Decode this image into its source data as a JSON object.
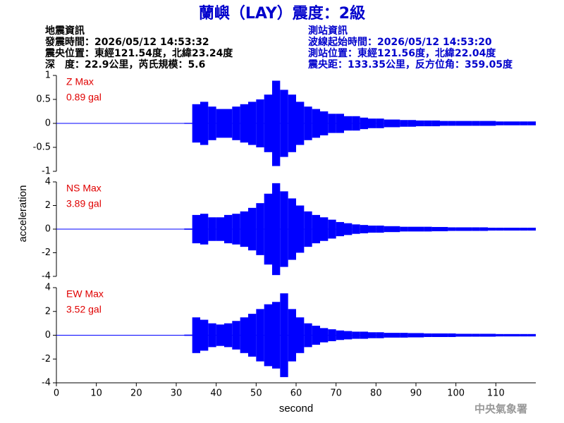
{
  "header": {
    "title": "蘭嶼（LAY）震度：2級",
    "left": [
      "地震資訊",
      "發震時間：2026/05/12 14:53:32",
      "震央位置：東經121.54度，北緯23.24度",
      "深　度：22.9公里，芮氏規模：5.6"
    ],
    "right": [
      "測站資訊",
      "波線起始時間：2026/05/12 14:53:20",
      "測站位置：東經121.56度，北緯22.04度",
      "震央距：133.35公里，反方位角：359.05度"
    ]
  },
  "ylabel": "acceleration",
  "footer": "中央氣象署",
  "chart_data": [
    {
      "type": "line",
      "label": "Z Max",
      "max_label": "0.89 gal",
      "color": "#0000ff",
      "x": [
        0,
        2,
        4,
        6,
        8,
        10,
        12,
        14,
        16,
        18,
        20,
        22,
        24,
        26,
        28,
        30,
        32,
        34,
        36,
        38,
        40,
        42,
        44,
        46,
        48,
        50,
        52,
        54,
        56,
        58,
        60,
        62,
        64,
        66,
        68,
        70,
        72,
        74,
        76,
        78,
        80,
        82,
        84,
        86,
        88,
        90,
        92,
        94,
        96,
        98,
        100,
        102,
        104,
        106,
        108,
        110,
        112,
        114,
        116,
        118
      ],
      "values": [
        0,
        0,
        0,
        0,
        0,
        0,
        0,
        0,
        0,
        0,
        0,
        0,
        0,
        0,
        0,
        0,
        0.01,
        0.4,
        0.45,
        0.35,
        0.3,
        0.3,
        0.35,
        0.4,
        0.45,
        0.5,
        0.6,
        0.89,
        0.7,
        0.6,
        0.45,
        0.35,
        0.3,
        0.25,
        0.2,
        0.2,
        0.15,
        0.15,
        0.12,
        0.1,
        0.1,
        0.08,
        0.08,
        0.07,
        0.07,
        0.06,
        0.06,
        0.06,
        0.05,
        0.05,
        0.05,
        0.05,
        0.05,
        0.05,
        0.05,
        0.04,
        0.04,
        0.04,
        0.04,
        0.04
      ],
      "xlim": [
        0,
        120
      ],
      "ylim": [
        -1,
        1
      ],
      "yticks": [
        1,
        0.5,
        0,
        -0.5,
        -1
      ]
    },
    {
      "type": "line",
      "label": "NS Max",
      "max_label": "3.89 gal",
      "color": "#0000ff",
      "x": [
        0,
        2,
        4,
        6,
        8,
        10,
        12,
        14,
        16,
        18,
        20,
        22,
        24,
        26,
        28,
        30,
        32,
        34,
        36,
        38,
        40,
        42,
        44,
        46,
        48,
        50,
        52,
        54,
        56,
        58,
        60,
        62,
        64,
        66,
        68,
        70,
        72,
        74,
        76,
        78,
        80,
        82,
        84,
        86,
        88,
        90,
        92,
        94,
        96,
        98,
        100,
        102,
        104,
        106,
        108,
        110,
        112,
        114,
        116,
        118
      ],
      "values": [
        0,
        0,
        0,
        0,
        0,
        0,
        0,
        0,
        0,
        0,
        0,
        0,
        0,
        0,
        0,
        0,
        0.05,
        1.2,
        1.3,
        1.0,
        1.0,
        1.2,
        1.3,
        1.5,
        1.8,
        2.2,
        3.0,
        3.89,
        3.2,
        2.6,
        2.0,
        1.5,
        1.2,
        1.0,
        0.8,
        0.6,
        0.5,
        0.4,
        0.35,
        0.3,
        0.3,
        0.25,
        0.25,
        0.2,
        0.2,
        0.2,
        0.2,
        0.18,
        0.18,
        0.15,
        0.15,
        0.15,
        0.15,
        0.15,
        0.12,
        0.12,
        0.12,
        0.12,
        0.12,
        0.12
      ],
      "xlim": [
        0,
        120
      ],
      "ylim": [
        -4,
        4
      ],
      "yticks": [
        4,
        2,
        0,
        -2,
        -4
      ]
    },
    {
      "type": "line",
      "label": "EW Max",
      "max_label": "3.52 gal",
      "color": "#0000ff",
      "x": [
        0,
        2,
        4,
        6,
        8,
        10,
        12,
        14,
        16,
        18,
        20,
        22,
        24,
        26,
        28,
        30,
        32,
        34,
        36,
        38,
        40,
        42,
        44,
        46,
        48,
        50,
        52,
        54,
        56,
        58,
        60,
        62,
        64,
        66,
        68,
        70,
        72,
        74,
        76,
        78,
        80,
        82,
        84,
        86,
        88,
        90,
        92,
        94,
        96,
        98,
        100,
        102,
        104,
        106,
        108,
        110,
        112,
        114,
        116,
        118
      ],
      "values": [
        0,
        0,
        0,
        0,
        0,
        0,
        0,
        0,
        0,
        0,
        0,
        0,
        0,
        0,
        0,
        0,
        0.05,
        1.5,
        1.3,
        1.0,
        0.9,
        1.0,
        1.2,
        1.5,
        1.8,
        2.2,
        2.6,
        2.8,
        3.52,
        2.2,
        1.5,
        1.0,
        0.8,
        0.6,
        0.5,
        0.4,
        0.35,
        0.3,
        0.3,
        0.25,
        0.25,
        0.2,
        0.2,
        0.2,
        0.18,
        0.18,
        0.15,
        0.15,
        0.15,
        0.15,
        0.12,
        0.12,
        0.12,
        0.12,
        0.12,
        0.1,
        0.1,
        0.1,
        0.1,
        0.1
      ],
      "xlim": [
        0,
        120
      ],
      "ylim": [
        -4,
        4
      ],
      "yticks": [
        4,
        2,
        0,
        -2,
        -4
      ],
      "xticks": [
        0,
        10,
        20,
        30,
        40,
        50,
        60,
        70,
        80,
        90,
        100,
        110
      ],
      "xlabel": "second"
    }
  ]
}
